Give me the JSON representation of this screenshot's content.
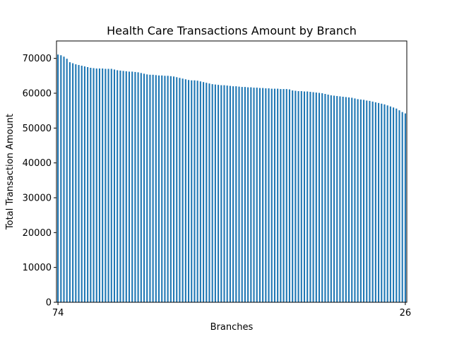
{
  "chart_data": {
    "type": "bar",
    "title": "Health Care Transactions Amount by Branch",
    "xlabel": "Branches",
    "ylabel": "Total Transaction Amount",
    "ylim": [
      0,
      75000
    ],
    "yticks": [
      0,
      10000,
      20000,
      30000,
      40000,
      50000,
      60000,
      70000
    ],
    "bar_color": "#1f77b4",
    "grid": false,
    "legend": "none",
    "first_category_label": "74",
    "last_category_label": "26",
    "values": [
      71100,
      70900,
      70500,
      69900,
      68900,
      68600,
      68300,
      68100,
      67900,
      67700,
      67500,
      67300,
      67200,
      67100,
      67100,
      67100,
      67000,
      67000,
      67000,
      66800,
      66600,
      66500,
      66400,
      66300,
      66200,
      66200,
      66100,
      66000,
      65800,
      65600,
      65400,
      65300,
      65300,
      65200,
      65100,
      65100,
      65000,
      65000,
      64900,
      64800,
      64600,
      64400,
      64200,
      64000,
      63800,
      63700,
      63700,
      63600,
      63400,
      63200,
      63000,
      62800,
      62600,
      62500,
      62400,
      62300,
      62300,
      62200,
      62100,
      62000,
      62000,
      61900,
      61800,
      61800,
      61700,
      61700,
      61600,
      61600,
      61500,
      61500,
      61400,
      61400,
      61300,
      61300,
      61300,
      61200,
      61200,
      61200,
      61100,
      60800,
      60700,
      60600,
      60600,
      60500,
      60500,
      60400,
      60300,
      60200,
      60100,
      60000,
      59800,
      59600,
      59400,
      59300,
      59200,
      59100,
      59000,
      58900,
      58800,
      58700,
      58500,
      58300,
      58200,
      58100,
      57900,
      57800,
      57600,
      57400,
      57200,
      57000,
      56800,
      56500,
      56200,
      55900,
      55600,
      55100,
      54600,
      54200
    ]
  }
}
